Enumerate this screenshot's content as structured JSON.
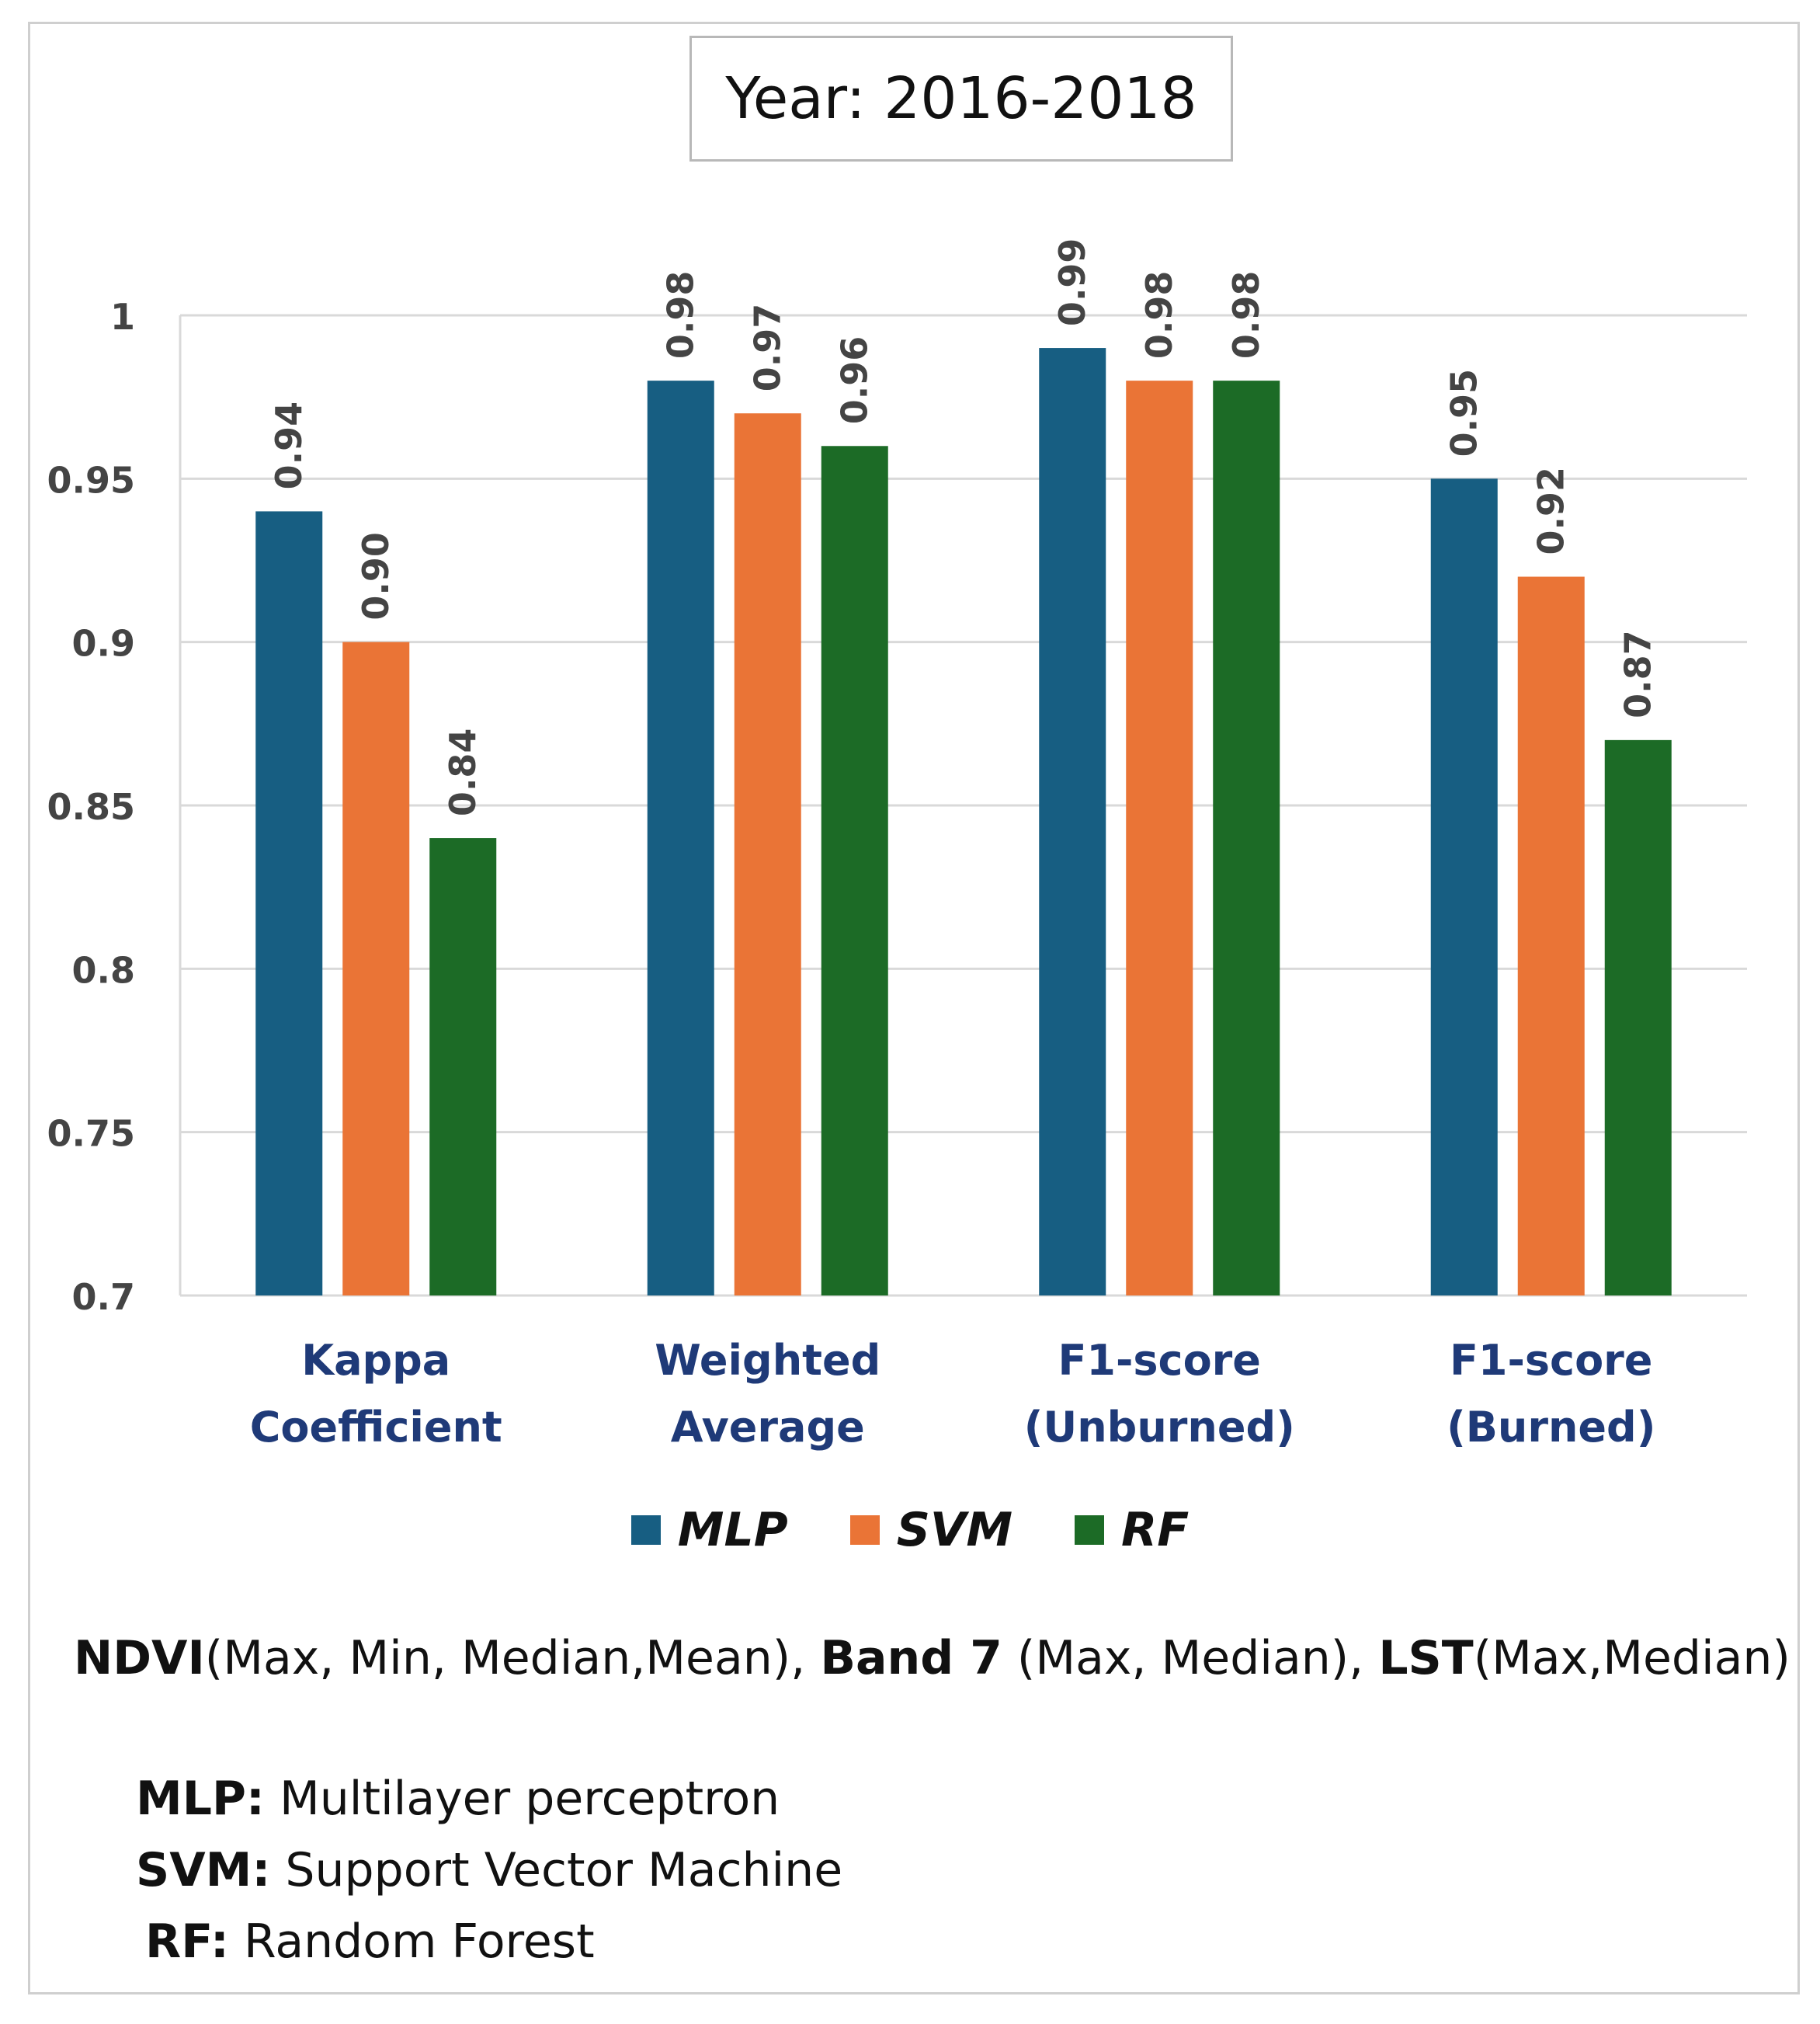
{
  "chart_data": {
    "type": "bar",
    "title": "Year: 2016-2018",
    "categories": [
      [
        "Kappa",
        "Coefficient"
      ],
      [
        "Weighted",
        "Average"
      ],
      [
        "F1-score",
        "(Unburned)"
      ],
      [
        "F1-score",
        "(Burned)"
      ]
    ],
    "series": [
      {
        "name": "MLP",
        "color": "#175e82",
        "values": [
          0.94,
          0.98,
          0.99,
          0.95
        ],
        "labels": [
          "0.94",
          "0.98",
          "0.99",
          "0.95"
        ]
      },
      {
        "name": "SVM",
        "color": "#ea7436",
        "values": [
          0.9,
          0.97,
          0.98,
          0.92
        ],
        "labels": [
          "0.90",
          "0.97",
          "0.98",
          "0.92"
        ]
      },
      {
        "name": "RF",
        "color": "#1c6b26",
        "values": [
          0.84,
          0.96,
          0.98,
          0.87
        ],
        "labels": [
          "0.84",
          "0.96",
          "0.98",
          "0.87"
        ]
      }
    ],
    "ylim": [
      0.7,
      1.0
    ],
    "yticks": [
      0.7,
      0.75,
      0.8,
      0.85,
      0.9,
      0.95,
      1.0
    ],
    "ytick_labels": [
      "0.7",
      "0.75",
      "0.8",
      "0.85",
      "0.9",
      "0.95",
      "1"
    ],
    "xlabel": "",
    "ylabel": "",
    "grid": true,
    "legend_position": "bottom"
  },
  "features": {
    "ndvi_label": "NDVI",
    "ndvi_detail": "(Max, Min, Median,Mean), ",
    "band_label": "Band 7",
    "band_detail": " (Max, Median), ",
    "lst_label": "LST",
    "lst_detail": "(Max,Median)"
  },
  "definitions": [
    {
      "abbr": "MLP:",
      "text": " Multilayer perceptron"
    },
    {
      "abbr": "SVM:",
      "text": " Support Vector Machine"
    },
    {
      "abbr": "RF:",
      "text": " Random Forest"
    }
  ]
}
